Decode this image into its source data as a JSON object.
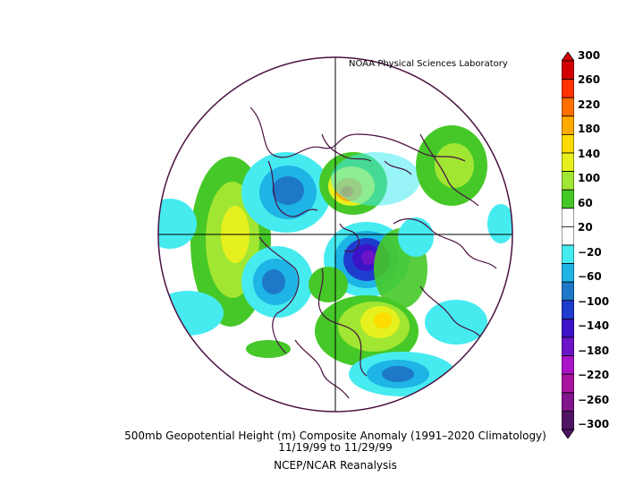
{
  "credit": "NOAA Physical Sciences Laboratory",
  "caption": {
    "line1": "500mb Geopotential Height (m) Composite Anomaly (1991–2020 Climatology)",
    "line2": "11/19/99   to 11/29/99",
    "line3": "NCEP/NCAR Reanalysis"
  },
  "colorbar": {
    "labels": [
      "300",
      "260",
      "220",
      "180",
      "140",
      "100",
      "60",
      "20",
      "−20",
      "−60",
      "−100",
      "−140",
      "−180",
      "−220",
      "−260",
      "−300"
    ],
    "colors": [
      "#d20000",
      "#ff3200",
      "#ff6e00",
      "#ffaa00",
      "#ffdc00",
      "#e6f01e",
      "#a0e632",
      "#46c828",
      "#ffffff",
      "#ffffff",
      "#46ebf0",
      "#1eb4e6",
      "#1e78c8",
      "#1e3ccd",
      "#3c14c8",
      "#6e14c8",
      "#aa14c8",
      "#aa14a0",
      "#82148c",
      "#501464"
    ]
  },
  "colors": {
    "outline": "#4a1040",
    "grid": "#000000"
  }
}
